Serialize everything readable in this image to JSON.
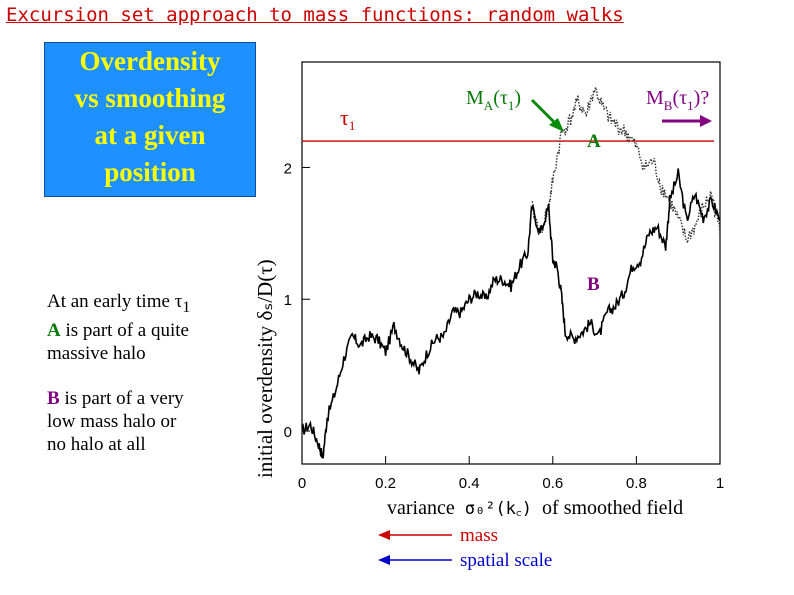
{
  "slide": {
    "title": "Excursion set approach to mass functions: random walks",
    "box_lines": [
      "Overdensity",
      "vs  smoothing",
      "at a given",
      "position"
    ],
    "notes": {
      "line1_prefix": "At an early time ",
      "tau_symbol": "τ",
      "tau_sub": "1",
      "a_label": "A",
      "a_text": " is part of a quite",
      "a_text2": "massive halo",
      "b_label": "B",
      "b_text": " is part of a very",
      "b_text2": "low mass halo or",
      "b_text3": "no halo at all"
    }
  },
  "chart_data": {
    "type": "line",
    "xlabel_prefix": "variance",
    "xlabel_math": "σ₀²(k꜀)",
    "xlabel_suffix": "of smoothed field",
    "ylabel": "initial overdensity δₛ/D(τ)",
    "xlim": [
      0,
      1.0
    ],
    "ylim": [
      -0.25,
      2.8
    ],
    "x_ticks": [
      "0",
      "0.2",
      "0.4",
      "0.6",
      "0.8",
      "1"
    ],
    "x_tick_values": [
      0,
      0.2,
      0.4,
      0.6,
      0.8,
      1.0
    ],
    "y_ticks": [
      "0",
      "1",
      "2"
    ],
    "y_tick_values": [
      0,
      1,
      2
    ],
    "threshold": {
      "value": 2.2,
      "label": "τ",
      "label_sub": "1"
    },
    "annotations": {
      "ma_label": "M",
      "ma_sub": "A",
      "ma_arg": "(τ",
      "ma_argsub": "1",
      "ma_close": ")",
      "mb_label": "M",
      "mb_sub": "B",
      "mb_arg": "(τ",
      "mb_argsub": "1",
      "mb_close": ")?",
      "a_point": "A",
      "b_point": "B"
    },
    "colors": {
      "threshold": "#cc0000",
      "arrow_a": "#0a8a0a",
      "arrow_b": "#800080",
      "mass": "#cc0000",
      "scale": "#0000cc"
    },
    "walk_b": [
      [
        0.0,
        0.0
      ],
      [
        0.02,
        0.05
      ],
      [
        0.04,
        -0.1
      ],
      [
        0.05,
        -0.2
      ],
      [
        0.06,
        0.1
      ],
      [
        0.08,
        0.3
      ],
      [
        0.1,
        0.55
      ],
      [
        0.12,
        0.72
      ],
      [
        0.14,
        0.65
      ],
      [
        0.16,
        0.72
      ],
      [
        0.18,
        0.7
      ],
      [
        0.2,
        0.6
      ],
      [
        0.22,
        0.8
      ],
      [
        0.24,
        0.65
      ],
      [
        0.26,
        0.55
      ],
      [
        0.28,
        0.45
      ],
      [
        0.3,
        0.6
      ],
      [
        0.32,
        0.7
      ],
      [
        0.34,
        0.72
      ],
      [
        0.36,
        0.9
      ],
      [
        0.38,
        0.9
      ],
      [
        0.4,
        1.0
      ],
      [
        0.42,
        1.05
      ],
      [
        0.44,
        1.0
      ],
      [
        0.46,
        1.15
      ],
      [
        0.48,
        1.15
      ],
      [
        0.5,
        1.1
      ],
      [
        0.52,
        1.25
      ],
      [
        0.54,
        1.35
      ],
      [
        0.55,
        1.7
      ],
      [
        0.57,
        1.5
      ],
      [
        0.59,
        1.7
      ],
      [
        0.6,
        1.3
      ],
      [
        0.61,
        1.25
      ],
      [
        0.62,
        1.05
      ],
      [
        0.63,
        0.75
      ],
      [
        0.65,
        0.7
      ],
      [
        0.67,
        0.75
      ],
      [
        0.69,
        0.82
      ],
      [
        0.71,
        0.72
      ],
      [
        0.73,
        0.9
      ],
      [
        0.75,
        0.95
      ],
      [
        0.77,
        1.05
      ],
      [
        0.79,
        1.25
      ],
      [
        0.81,
        1.3
      ],
      [
        0.83,
        1.5
      ],
      [
        0.85,
        1.55
      ],
      [
        0.87,
        1.4
      ],
      [
        0.88,
        1.75
      ],
      [
        0.9,
        1.95
      ],
      [
        0.92,
        1.6
      ],
      [
        0.94,
        1.8
      ],
      [
        0.96,
        1.62
      ],
      [
        0.98,
        1.75
      ],
      [
        1.0,
        1.6
      ]
    ],
    "walk_a": [
      [
        0.55,
        1.7
      ],
      [
        0.57,
        1.5
      ],
      [
        0.59,
        1.7
      ],
      [
        0.6,
        1.9
      ],
      [
        0.62,
        2.25
      ],
      [
        0.64,
        2.35
      ],
      [
        0.66,
        2.5
      ],
      [
        0.68,
        2.4
      ],
      [
        0.7,
        2.6
      ],
      [
        0.72,
        2.45
      ],
      [
        0.74,
        2.35
      ],
      [
        0.76,
        2.3
      ],
      [
        0.78,
        2.25
      ],
      [
        0.8,
        2.15
      ],
      [
        0.82,
        2.0
      ],
      [
        0.84,
        2.05
      ],
      [
        0.86,
        1.85
      ],
      [
        0.88,
        1.75
      ],
      [
        0.9,
        1.6
      ],
      [
        0.92,
        1.45
      ],
      [
        0.94,
        1.55
      ],
      [
        0.96,
        1.7
      ],
      [
        0.98,
        1.8
      ],
      [
        1.0,
        1.5
      ]
    ]
  },
  "legend": {
    "mass_label": "mass",
    "scale_label": "spatial scale"
  }
}
